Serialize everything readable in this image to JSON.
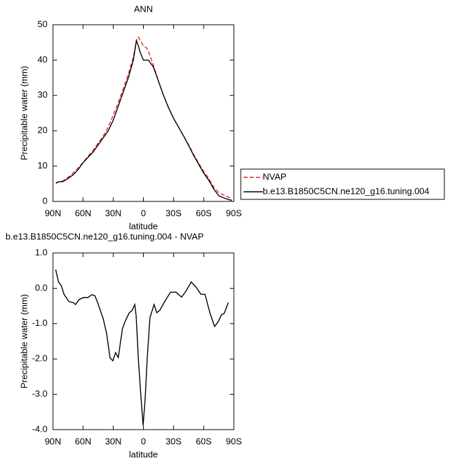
{
  "chart_data": [
    {
      "type": "line",
      "title": "ANN",
      "xlabel": "latitude",
      "ylabel": "Precipitable water (mm)",
      "x": [
        87,
        85,
        80,
        75,
        70,
        65,
        60,
        55,
        50,
        45,
        40,
        35,
        30,
        25,
        20,
        15,
        10,
        7,
        5,
        3,
        0,
        -3,
        -5,
        -10,
        -15,
        -20,
        -25,
        -30,
        -35,
        -40,
        -45,
        -50,
        -55,
        -60,
        -65,
        -70,
        -75,
        -80,
        -85,
        -88
      ],
      "series": [
        {
          "name": "NVAP",
          "color": "#e8251f",
          "line_style": "dashed",
          "values": [
            5.0,
            5.5,
            5.8,
            6.8,
            8,
            9.5,
            11,
            12.8,
            14.5,
            16.5,
            18.5,
            21,
            24.5,
            28,
            32,
            36,
            41,
            45.5,
            46.5,
            45.5,
            44,
            43.5,
            42.5,
            38.5,
            34,
            30,
            26.5,
            23.5,
            21,
            18.5,
            16,
            13.3,
            10.8,
            8.5,
            6.5,
            4,
            2.5,
            1.8,
            1.2,
            0.6
          ]
        },
        {
          "name": "b.e13.B1850C5CN.ne120_g16.tuning.004",
          "color": "#000000",
          "line_style": "solid",
          "values": [
            5.3,
            5.5,
            5.6,
            6.5,
            7.5,
            9,
            11,
            12.5,
            14,
            16,
            18,
            20,
            23,
            27,
            31,
            35,
            40,
            45.5,
            44,
            42,
            40,
            40,
            40,
            38,
            34,
            30,
            26.5,
            23.5,
            21,
            18.5,
            15.8,
            13,
            10.5,
            8,
            6,
            3.5,
            1.6,
            1.0,
            0.5,
            0.3
          ]
        }
      ],
      "xlim": [
        90,
        -90
      ],
      "xticks": [
        {
          "value": 90,
          "label": "90N"
        },
        {
          "value": 60,
          "label": "60N"
        },
        {
          "value": 30,
          "label": "30N"
        },
        0,
        {
          "value": -30,
          "label": "30S"
        },
        {
          "value": -60,
          "label": "60S"
        },
        {
          "value": -90,
          "label": "90S"
        }
      ],
      "ylim": [
        0,
        50
      ],
      "yticks": [
        0,
        10,
        20,
        30,
        40,
        50
      ],
      "legend_position": "right"
    },
    {
      "type": "line",
      "title": "b.e13.B1850C5CN.ne120_g16.tuning.004 - NVAP",
      "xlabel": "latitude",
      "ylabel": "Precipitable water (mm)",
      "x": [
        87.3,
        84.5,
        81.8,
        79.0,
        74.3,
        69.5,
        67.5,
        64.1,
        59.3,
        55.2,
        51.1,
        48.3,
        45.5,
        40.0,
        36.6,
        33.2,
        30.4,
        27.7,
        25.0,
        20.9,
        17.5,
        14.0,
        11.3,
        8.6,
        7.2,
        5.1,
        2.4,
        0.3,
        -1.7,
        -3.8,
        -6.5,
        -10.6,
        -13.3,
        -16.1,
        -21.5,
        -27.0,
        -32.5,
        -38.0,
        -42.1,
        -47.6,
        -52.4,
        -57.2,
        -61.3,
        -66.1,
        -70.8,
        -74.3,
        -77.7,
        -80.4,
        -84.5
      ],
      "series": [
        {
          "name": "b.e13.B1850C5CN.ne120_g16.tuning.004 - NVAP",
          "color": "#000000",
          "line_style": "solid",
          "values": [
            0.53,
            0.18,
            0.08,
            -0.17,
            -0.37,
            -0.41,
            -0.46,
            -0.32,
            -0.26,
            -0.26,
            -0.18,
            -0.21,
            -0.41,
            -0.86,
            -1.28,
            -1.97,
            -2.05,
            -1.82,
            -1.96,
            -1.14,
            -0.89,
            -0.69,
            -0.63,
            -0.46,
            -0.79,
            -1.97,
            -3.1,
            -3.88,
            -3.14,
            -1.97,
            -0.83,
            -0.46,
            -0.69,
            -0.63,
            -0.36,
            -0.11,
            -0.11,
            -0.25,
            -0.09,
            0.18,
            0.03,
            -0.17,
            -0.17,
            -0.69,
            -1.08,
            -0.95,
            -0.75,
            -0.71,
            -0.4
          ]
        }
      ],
      "xlim": [
        90,
        -90
      ],
      "xticks": [
        {
          "value": 90,
          "label": "90N"
        },
        {
          "value": 60,
          "label": "60N"
        },
        {
          "value": 30,
          "label": "30N"
        },
        0,
        {
          "value": -30,
          "label": "30S"
        },
        {
          "value": -60,
          "label": "60S"
        },
        {
          "value": -90,
          "label": "90S"
        }
      ],
      "ylim": [
        -4,
        1
      ],
      "yticks": [
        {
          "value": -4,
          "label": "-4.0"
        },
        {
          "value": -3,
          "label": "-3.0"
        },
        {
          "value": -2,
          "label": "-2.0"
        },
        {
          "value": -1,
          "label": "-1.0"
        },
        {
          "value": 0,
          "label": "0.0"
        },
        {
          "value": 1,
          "label": "1.0"
        }
      ]
    }
  ]
}
